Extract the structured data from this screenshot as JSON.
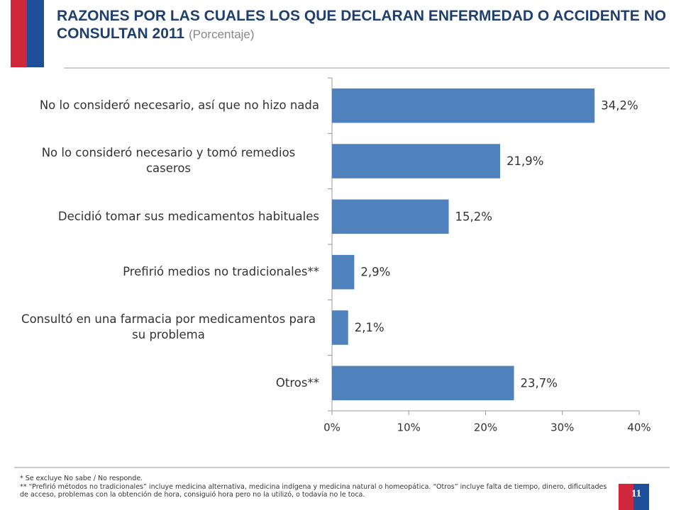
{
  "chart_data": {
    "type": "barh",
    "title": "RAZONES POR LAS CUALES LOS QUE DECLARAN ENFERMEDAD O ACCIDENTE NO CONSULTAN 2011",
    "subtitle": "(Porcentaje)",
    "categories": [
      "No lo consideró necesario, así que no hizo nada",
      "No lo consideró necesario y tomó remedios caseros",
      "Decidió tomar sus medicamentos habituales",
      "Prefirió medios no tradicionales**",
      "Consultó en una farmacia por medicamentos para su problema",
      "Otros**"
    ],
    "values": [
      34.2,
      21.9,
      15.2,
      2.9,
      2.1,
      23.7
    ],
    "value_labels": [
      "34,2%",
      "21,9%",
      "15,2%",
      "2,9%",
      "2,1%",
      "23,7%"
    ],
    "color": "#4f81bd",
    "xlim": [
      0,
      40
    ],
    "xticks": [
      {
        "value": 0,
        "label": "0%"
      },
      {
        "value": 10,
        "label": "10%"
      },
      {
        "value": 20,
        "label": "20%"
      },
      {
        "value": 30,
        "label": "30%"
      },
      {
        "value": 40,
        "label": "40%"
      }
    ],
    "grid": false,
    "footnotes": [
      "* Se excluye No sabe / No responde.",
      "** “Prefirió métodos no tradicionales” incluye medicina alternativa, medicina indígena y medicina natural o homeopática. “Otros” incluye falta de tiempo, dinero, dificultades de acceso, problemas con la obtención de hora, consiguió hora pero no la utilizó, o todavía no le toca."
    ],
    "page_number": "11"
  }
}
